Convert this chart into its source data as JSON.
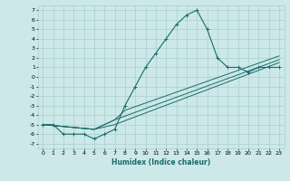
{
  "xlabel": "Humidex (Indice chaleur)",
  "xlim": [
    -0.5,
    23.5
  ],
  "ylim": [
    -7.5,
    7.5
  ],
  "xticks": [
    0,
    1,
    2,
    3,
    4,
    5,
    6,
    7,
    8,
    9,
    10,
    11,
    12,
    13,
    14,
    15,
    16,
    17,
    18,
    19,
    20,
    21,
    22,
    23
  ],
  "yticks": [
    -7,
    -6,
    -5,
    -4,
    -3,
    -2,
    -1,
    0,
    1,
    2,
    3,
    4,
    5,
    6,
    7
  ],
  "bg_color": "#cce8e8",
  "grid_color": "#aacfcf",
  "line_color": "#1a6b6b",
  "line1_x": [
    0,
    1,
    2,
    3,
    4,
    5,
    6,
    7,
    8,
    9,
    10,
    11,
    12,
    13,
    14,
    15,
    16,
    17,
    18,
    19,
    20,
    21,
    22,
    23
  ],
  "line1_y": [
    -5,
    -5,
    -6,
    -6,
    -6,
    -6.5,
    -6,
    -5.5,
    -3,
    -1,
    1,
    2.5,
    4,
    5.5,
    6.5,
    7,
    5,
    2,
    1,
    1,
    0.5,
    1,
    1,
    1
  ],
  "line2_x": [
    0,
    5,
    7,
    23
  ],
  "line2_y": [
    -5,
    -5.5,
    -5,
    1.5
  ],
  "line3_x": [
    0,
    5,
    7,
    23
  ],
  "line3_y": [
    -5,
    -5.5,
    -4.5,
    1.8
  ],
  "line4_x": [
    0,
    5,
    7,
    8,
    23
  ],
  "line4_y": [
    -5,
    -5.5,
    -4.5,
    -3.5,
    2.2
  ]
}
